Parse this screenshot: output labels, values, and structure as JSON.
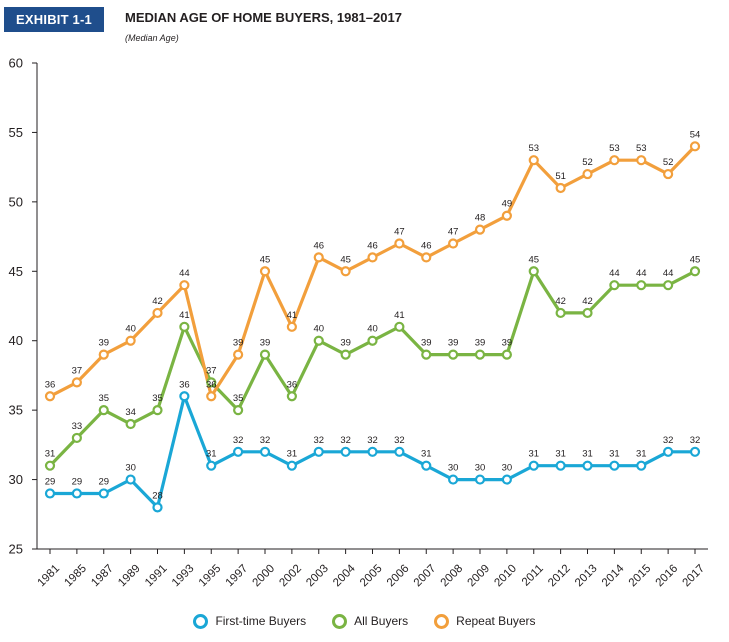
{
  "header": {
    "exhibit_label": "EXHIBIT 1-1",
    "title": "MEDIAN AGE OF HOME BUYERS, 1981–2017",
    "subtitle": "(Median Age)"
  },
  "chart_data": {
    "type": "line",
    "categories": [
      "1981",
      "1985",
      "1987",
      "1989",
      "1991",
      "1993",
      "1995",
      "1997",
      "2000",
      "2002",
      "2003",
      "2004",
      "2005",
      "2006",
      "2007",
      "2008",
      "2009",
      "2010",
      "2011",
      "2012",
      "2013",
      "2014",
      "2015",
      "2016",
      "2017"
    ],
    "ylim": [
      25,
      60
    ],
    "yticks": [
      25,
      30,
      35,
      40,
      45,
      50,
      55,
      60
    ],
    "grid": false,
    "legend_position": "bottom",
    "series": [
      {
        "name": "First-time Buyers",
        "color": "#1aa7d6",
        "values": [
          29,
          29,
          29,
          30,
          28,
          36,
          31,
          32,
          32,
          31,
          32,
          32,
          32,
          32,
          31,
          30,
          30,
          30,
          31,
          31,
          31,
          31,
          31,
          32,
          32
        ]
      },
      {
        "name": "All Buyers",
        "color": "#7ab443",
        "values": [
          31,
          33,
          35,
          34,
          35,
          41,
          37,
          35,
          39,
          36,
          40,
          39,
          40,
          41,
          39,
          39,
          39,
          39,
          45,
          42,
          42,
          44,
          44,
          44,
          45
        ]
      },
      {
        "name": "Repeat Buyers",
        "color": "#f29f3c",
        "values": [
          36,
          37,
          39,
          40,
          42,
          44,
          36,
          39,
          45,
          41,
          46,
          45,
          46,
          47,
          46,
          47,
          48,
          49,
          53,
          51,
          52,
          53,
          53,
          52,
          54
        ]
      }
    ]
  }
}
